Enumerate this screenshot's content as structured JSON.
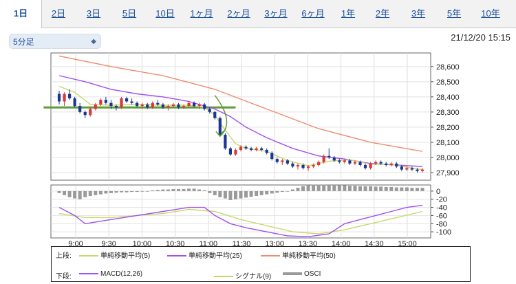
{
  "tabs": [
    {
      "label": "1日",
      "active": true
    },
    {
      "label": "2日"
    },
    {
      "label": "3日"
    },
    {
      "label": "5日"
    },
    {
      "label": "10日"
    },
    {
      "label": "1ヶ月"
    },
    {
      "label": "2ヶ月"
    },
    {
      "label": "3ヶ月"
    },
    {
      "label": "6ヶ月"
    },
    {
      "label": "1年"
    },
    {
      "label": "2年"
    },
    {
      "label": "3年"
    },
    {
      "label": "5年"
    },
    {
      "label": "10年"
    }
  ],
  "interval_select": {
    "value": "5分足",
    "icon": "chevron-updown-icon"
  },
  "datetime": "21/12/20 15:15",
  "colors": {
    "up": "#d9383a",
    "down": "#1c3590",
    "sma5": "#c8d86a",
    "sma25": "#a04ff0",
    "sma50": "#f08a6e",
    "macd": "#a04ff0",
    "signal": "#c8d86a",
    "osci": "#9a9a9a",
    "trend": "#5f9b38"
  },
  "chart_data": [
    {
      "type": "candlestick",
      "ylim": [
        27850,
        28690
      ],
      "y_ticks": [
        "28,600",
        "28,500",
        "28,400",
        "28,300",
        "28,200",
        "28,100",
        "28,000",
        "27,900"
      ],
      "y_tick_values": [
        28600,
        28500,
        28400,
        28300,
        28200,
        28100,
        28000,
        27900
      ],
      "x_ticks": [
        "9:00",
        "9:30",
        "10:00",
        "10:30",
        "11:00",
        "11:30",
        "13:00",
        "13:30",
        "14:00",
        "14:30",
        "15:00"
      ],
      "candles": [
        [
          28420,
          28440,
          28350,
          28370
        ],
        [
          28370,
          28430,
          28340,
          28420
        ],
        [
          28420,
          28450,
          28380,
          28390
        ],
        [
          28390,
          28400,
          28330,
          28340
        ],
        [
          28340,
          28360,
          28290,
          28300
        ],
        [
          28300,
          28310,
          28260,
          28280
        ],
        [
          28280,
          28330,
          28270,
          28320
        ],
        [
          28320,
          28360,
          28310,
          28350
        ],
        [
          28350,
          28390,
          28340,
          28380
        ],
        [
          28380,
          28400,
          28350,
          28360
        ],
        [
          28360,
          28380,
          28320,
          28340
        ],
        [
          28340,
          28350,
          28310,
          28330
        ],
        [
          28330,
          28400,
          28320,
          28390
        ],
        [
          28390,
          28400,
          28360,
          28370
        ],
        [
          28370,
          28390,
          28350,
          28360
        ],
        [
          28360,
          28370,
          28330,
          28340
        ],
        [
          28340,
          28360,
          28320,
          28350
        ],
        [
          28350,
          28360,
          28320,
          28330
        ],
        [
          28330,
          28370,
          28320,
          28360
        ],
        [
          28360,
          28380,
          28340,
          28350
        ],
        [
          28350,
          28360,
          28320,
          28330
        ],
        [
          28330,
          28350,
          28310,
          28340
        ],
        [
          28340,
          28360,
          28330,
          28350
        ],
        [
          28350,
          28360,
          28320,
          28330
        ],
        [
          28330,
          28350,
          28320,
          28340
        ],
        [
          28340,
          28370,
          28330,
          28360
        ],
        [
          28360,
          28370,
          28330,
          28340
        ],
        [
          28340,
          28360,
          28320,
          28350
        ],
        [
          28350,
          28360,
          28310,
          28320
        ],
        [
          28320,
          28330,
          28290,
          28300
        ],
        [
          28300,
          28310,
          28250,
          28260
        ],
        [
          28260,
          28270,
          28140,
          28150
        ],
        [
          28150,
          28160,
          28050,
          28060
        ],
        [
          28060,
          28070,
          28010,
          28020
        ],
        [
          28020,
          28060,
          28010,
          28050
        ],
        [
          28050,
          28080,
          28040,
          28070
        ],
        [
          28070,
          28080,
          28050,
          28060
        ],
        [
          28060,
          28070,
          28040,
          28050
        ],
        [
          28050,
          28070,
          28040,
          28060
        ],
        [
          28060,
          28070,
          28040,
          28050
        ],
        [
          28050,
          28060,
          28020,
          28030
        ],
        [
          28030,
          28040,
          27980,
          27990
        ],
        [
          27990,
          28000,
          27960,
          27970
        ],
        [
          27970,
          27990,
          27950,
          27980
        ],
        [
          27980,
          27990,
          27950,
          27960
        ],
        [
          27960,
          27970,
          27930,
          27940
        ],
        [
          27940,
          27960,
          27920,
          27950
        ],
        [
          27950,
          27960,
          27920,
          27930
        ],
        [
          27930,
          27950,
          27910,
          27940
        ],
        [
          27940,
          27960,
          27930,
          27950
        ],
        [
          27950,
          27980,
          27940,
          27970
        ],
        [
          27970,
          28020,
          27960,
          28010
        ],
        [
          28010,
          28060,
          27990,
          28000
        ],
        [
          28000,
          28010,
          27970,
          27980
        ],
        [
          27980,
          27990,
          27960,
          27970
        ],
        [
          27970,
          27990,
          27960,
          27980
        ],
        [
          27980,
          27990,
          27950,
          27960
        ],
        [
          27960,
          27980,
          27950,
          27970
        ],
        [
          27970,
          27980,
          27940,
          27950
        ],
        [
          27950,
          27960,
          27920,
          27930
        ],
        [
          27930,
          27970,
          27920,
          27960
        ],
        [
          27960,
          27980,
          27950,
          27970
        ],
        [
          27970,
          27980,
          27950,
          27960
        ],
        [
          27960,
          27970,
          27940,
          27950
        ],
        [
          27950,
          27970,
          27940,
          27960
        ],
        [
          27960,
          27970,
          27930,
          27940
        ],
        [
          27940,
          27950,
          27910,
          27920
        ],
        [
          27920,
          27940,
          27910,
          27930
        ],
        [
          27930,
          27940,
          27910,
          27920
        ],
        [
          27920,
          27930,
          27900,
          27910
        ],
        [
          27910,
          27930,
          27900,
          27920
        ]
      ],
      "sma5": [
        [
          0,
          28470
        ],
        [
          3,
          28430
        ],
        [
          6,
          28350
        ],
        [
          10,
          28345
        ],
        [
          15,
          28350
        ],
        [
          20,
          28345
        ],
        [
          25,
          28345
        ],
        [
          28,
          28330
        ],
        [
          30,
          28280
        ],
        [
          32,
          28180
        ],
        [
          34,
          28090
        ],
        [
          36,
          28060
        ],
        [
          40,
          28040
        ],
        [
          44,
          27980
        ],
        [
          48,
          27945
        ],
        [
          52,
          27975
        ],
        [
          56,
          27985
        ],
        [
          60,
          27955
        ],
        [
          64,
          27955
        ],
        [
          68,
          27930
        ],
        [
          70,
          27920
        ]
      ],
      "sma25": [
        [
          0,
          28540
        ],
        [
          5,
          28500
        ],
        [
          10,
          28450
        ],
        [
          15,
          28420
        ],
        [
          20,
          28400
        ],
        [
          25,
          28370
        ],
        [
          30,
          28320
        ],
        [
          33,
          28270
        ],
        [
          36,
          28200
        ],
        [
          40,
          28130
        ],
        [
          45,
          28060
        ],
        [
          50,
          28010
        ],
        [
          55,
          27990
        ],
        [
          60,
          27960
        ],
        [
          65,
          27950
        ],
        [
          70,
          27940
        ]
      ],
      "sma50": [
        [
          0,
          28670
        ],
        [
          10,
          28600
        ],
        [
          20,
          28540
        ],
        [
          30,
          28450
        ],
        [
          40,
          28320
        ],
        [
          50,
          28190
        ],
        [
          60,
          28100
        ],
        [
          70,
          28040
        ]
      ],
      "trend_line": [
        [
          -3,
          28330
        ],
        [
          34,
          28330
        ]
      ],
      "arrow": [
        [
          30,
          28410
        ],
        [
          33,
          28230
        ],
        [
          31,
          28140
        ]
      ]
    },
    {
      "type": "macd",
      "ylim": [
        -115,
        15
      ],
      "y_ticks": [
        "0",
        "-20",
        "-40",
        "-60",
        "-80",
        "-100"
      ],
      "y_tick_values": [
        0,
        -20,
        -40,
        -60,
        -80,
        -100
      ],
      "macd": [
        [
          0,
          -40
        ],
        [
          3,
          -60
        ],
        [
          5,
          -80
        ],
        [
          10,
          -70
        ],
        [
          15,
          -60
        ],
        [
          20,
          -50
        ],
        [
          25,
          -40
        ],
        [
          28,
          -40
        ],
        [
          30,
          -60
        ],
        [
          33,
          -80
        ],
        [
          36,
          -90
        ],
        [
          40,
          -100
        ],
        [
          44,
          -110
        ],
        [
          48,
          -112
        ],
        [
          52,
          -105
        ],
        [
          55,
          -80
        ],
        [
          58,
          -70
        ],
        [
          61,
          -60
        ],
        [
          64,
          -50
        ],
        [
          67,
          -40
        ],
        [
          70,
          -35
        ]
      ],
      "signal": [
        [
          0,
          -55
        ],
        [
          5,
          -65
        ],
        [
          10,
          -65
        ],
        [
          15,
          -60
        ],
        [
          20,
          -55
        ],
        [
          25,
          -45
        ],
        [
          30,
          -50
        ],
        [
          35,
          -70
        ],
        [
          40,
          -85
        ],
        [
          45,
          -100
        ],
        [
          50,
          -105
        ],
        [
          55,
          -95
        ],
        [
          60,
          -80
        ],
        [
          65,
          -65
        ],
        [
          70,
          -50
        ]
      ],
      "osci": [
        -5,
        -10,
        -15,
        -18,
        -20,
        -15,
        -12,
        -10,
        -8,
        -6,
        -5,
        -4,
        -3,
        -3,
        -2,
        -2,
        -1,
        -1,
        2,
        3,
        4,
        4,
        5,
        5,
        5,
        6,
        6,
        4,
        2,
        -5,
        -10,
        -15,
        -18,
        -22,
        -20,
        -18,
        -16,
        -14,
        -12,
        -10,
        -8,
        -6,
        -4,
        -2,
        0,
        4,
        8,
        12,
        14,
        16,
        16,
        16,
        15,
        15,
        14,
        14,
        13,
        13,
        12,
        12,
        12,
        11,
        11,
        10,
        10,
        9,
        9,
        9,
        8,
        8,
        8
      ]
    }
  ],
  "legend": {
    "upper_label": "上段:",
    "lower_label": "下段:",
    "upper": [
      {
        "name": "単純移動平均(5)",
        "color": "#c8d86a"
      },
      {
        "name": "単純移動平均(25)",
        "color": "#a04ff0"
      },
      {
        "name": "単純移動平均(50)",
        "color": "#f08a6e"
      }
    ],
    "lower": [
      {
        "name": "MACD(12,26)",
        "color": "#a04ff0"
      },
      {
        "name": "シグナル(9)",
        "color": "#c8d86a"
      },
      {
        "name": "OSCI",
        "color": "#9a9a9a"
      }
    ]
  }
}
